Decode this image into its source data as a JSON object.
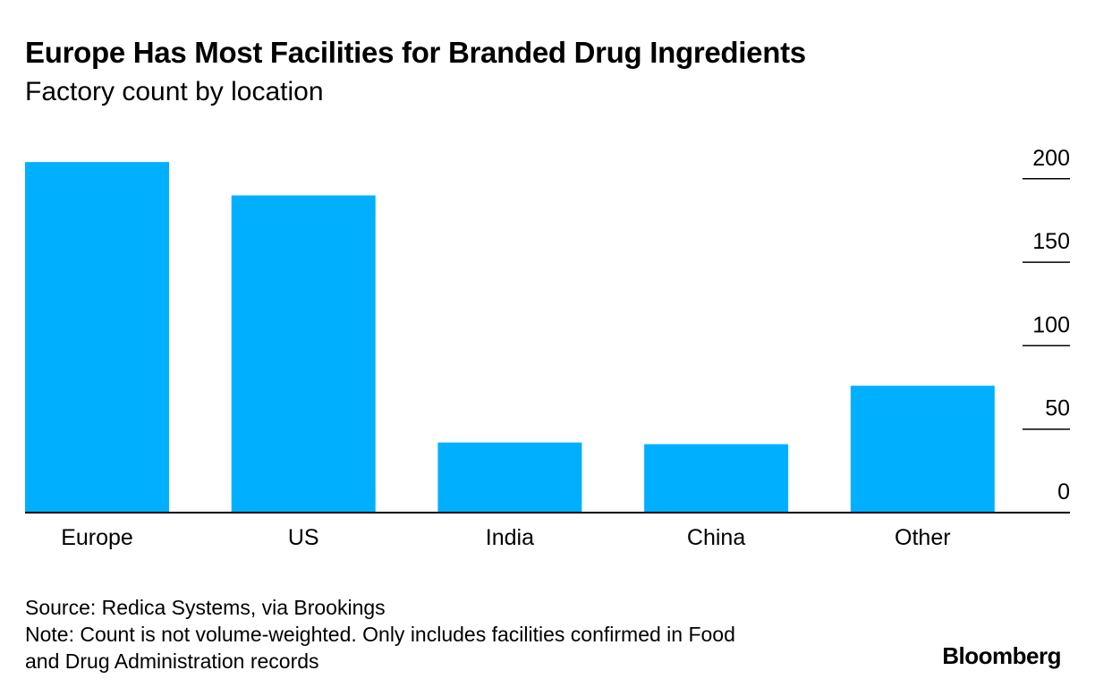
{
  "header": {
    "title": "Europe Has Most Facilities for Branded Drug Ingredients",
    "subtitle": "Factory count by location"
  },
  "footer": {
    "source": "Source: Redica Systems, via Brookings",
    "note_line1": "Note: Count is not volume-weighted. Only includes facilities confirmed in Food",
    "note_line2": "and Drug Administration records",
    "brand": "Bloomberg"
  },
  "colors": {
    "bar": "#00B0FF",
    "axis": "#000000",
    "text": "#000000"
  },
  "chart_data": {
    "type": "bar",
    "title": "Europe Has Most Facilities for Branded Drug Ingredients",
    "subtitle": "Factory count by location",
    "categories": [
      "Europe",
      "US",
      "India",
      "China",
      "Other"
    ],
    "values": [
      210,
      190,
      42,
      41,
      76
    ],
    "xlabel": "",
    "ylabel": "",
    "ylim": [
      0,
      200
    ],
    "yticks": [
      0,
      50,
      100,
      150,
      200
    ],
    "y_axis_side": "right",
    "grid": false,
    "legend": "none"
  }
}
